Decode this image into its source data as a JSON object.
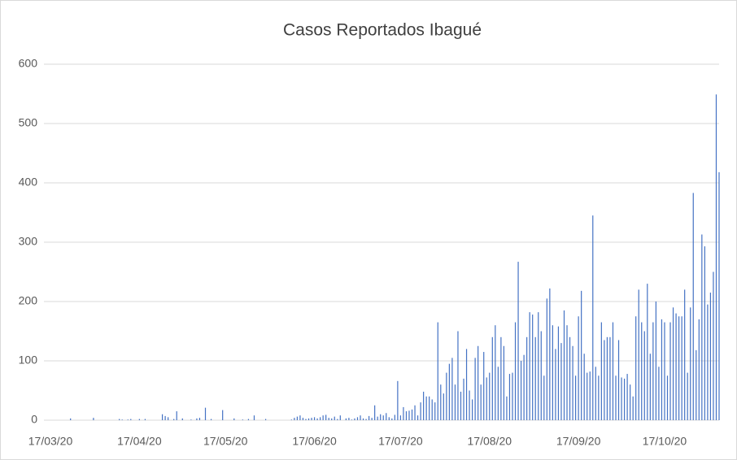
{
  "chart_data": {
    "type": "bar",
    "title": "Casos Reportados Ibagué",
    "categories": [
      "17/03/20",
      null,
      null,
      null,
      null,
      null,
      null,
      null,
      null,
      null,
      null,
      null,
      null,
      null,
      null,
      null,
      null,
      null,
      null,
      null,
      null,
      null,
      null,
      null,
      null,
      null,
      null,
      null,
      null,
      null,
      null,
      "17/04/20",
      null,
      null,
      null,
      null,
      null,
      null,
      null,
      null,
      null,
      null,
      null,
      null,
      null,
      null,
      null,
      null,
      null,
      null,
      null,
      null,
      null,
      null,
      null,
      null,
      null,
      null,
      null,
      null,
      null,
      "17/05/20",
      null,
      null,
      null,
      null,
      null,
      null,
      null,
      null,
      null,
      null,
      null,
      null,
      null,
      null,
      null,
      null,
      null,
      null,
      null,
      null,
      null,
      null,
      null,
      null,
      null,
      null,
      null,
      null,
      null,
      null,
      "17/06/20",
      null,
      null,
      null,
      null,
      null,
      null,
      null,
      null,
      null,
      null,
      null,
      null,
      null,
      null,
      null,
      null,
      null,
      null,
      null,
      null,
      null,
      null,
      null,
      null,
      null,
      null,
      null,
      null,
      null,
      "17/07/20",
      null,
      null,
      null,
      null,
      null,
      null,
      null,
      null,
      null,
      null,
      null,
      null,
      null,
      null,
      null,
      null,
      null,
      null,
      null,
      null,
      null,
      null,
      null,
      null,
      null,
      null,
      null,
      null,
      null,
      null,
      "17/08/20",
      null,
      null,
      null,
      null,
      null,
      null,
      null,
      null,
      null,
      null,
      null,
      null,
      null,
      null,
      null,
      null,
      null,
      null,
      null,
      null,
      null,
      null,
      null,
      null,
      null,
      null,
      null,
      null,
      null,
      null,
      "17/09/20",
      null,
      null,
      null,
      null,
      null,
      null,
      null,
      null,
      null,
      null,
      null,
      null,
      null,
      null,
      null,
      null,
      null,
      null,
      null,
      null,
      null,
      null,
      null,
      null,
      null,
      null,
      null,
      null,
      null,
      "17/10/20",
      null,
      null,
      null,
      null,
      null,
      null,
      null,
      null,
      null,
      null,
      null,
      null,
      null,
      null,
      null,
      null,
      null,
      null,
      null
    ],
    "values": [
      0,
      0,
      0,
      0,
      0,
      0,
      0,
      3,
      0,
      0,
      0,
      0,
      0,
      0,
      0,
      4,
      0,
      0,
      0,
      0,
      0,
      0,
      0,
      0,
      2,
      1,
      0,
      1,
      2,
      0,
      0,
      2,
      0,
      2,
      0,
      0,
      0,
      0,
      0,
      10,
      7,
      5,
      0,
      2,
      15,
      0,
      3,
      0,
      0,
      1,
      0,
      3,
      4,
      0,
      21,
      0,
      2,
      0,
      0,
      0,
      17,
      0,
      0,
      0,
      3,
      0,
      0,
      1,
      0,
      2,
      0,
      8,
      0,
      0,
      0,
      2,
      0,
      0,
      0,
      0,
      0,
      0,
      0,
      0,
      1,
      4,
      6,
      8,
      4,
      2,
      3,
      4,
      5,
      3,
      5,
      8,
      9,
      4,
      3,
      6,
      2,
      8,
      0,
      3,
      4,
      1,
      3,
      5,
      8,
      3,
      2,
      7,
      4,
      25,
      6,
      10,
      8,
      12,
      5,
      3,
      9,
      66,
      8,
      22,
      15,
      16,
      18,
      25,
      8,
      30,
      48,
      40,
      40,
      35,
      30,
      165,
      60,
      45,
      80,
      95,
      105,
      60,
      150,
      48,
      70,
      120,
      50,
      35,
      105,
      125,
      60,
      115,
      72,
      80,
      140,
      160,
      90,
      140,
      125,
      40,
      78,
      80,
      165,
      267,
      100,
      110,
      140,
      182,
      178,
      140,
      182,
      150,
      75,
      205,
      222,
      160,
      120,
      158,
      130,
      185,
      160,
      140,
      125,
      75,
      175,
      218,
      112,
      80,
      82,
      345,
      90,
      75,
      165,
      135,
      140,
      140,
      165,
      75,
      135,
      72,
      70,
      78,
      60,
      40,
      175,
      220,
      165,
      150,
      230,
      112,
      165,
      200,
      90,
      170,
      165,
      75,
      165,
      190,
      180,
      175,
      175,
      220,
      80,
      190,
      383,
      118,
      170,
      313,
      293,
      195,
      215,
      250,
      549,
      418
    ],
    "color": "#4472c4",
    "ylim": [
      0,
      600
    ],
    "yticks": [
      0,
      100,
      200,
      300,
      400,
      500,
      600
    ],
    "grid": true
  }
}
